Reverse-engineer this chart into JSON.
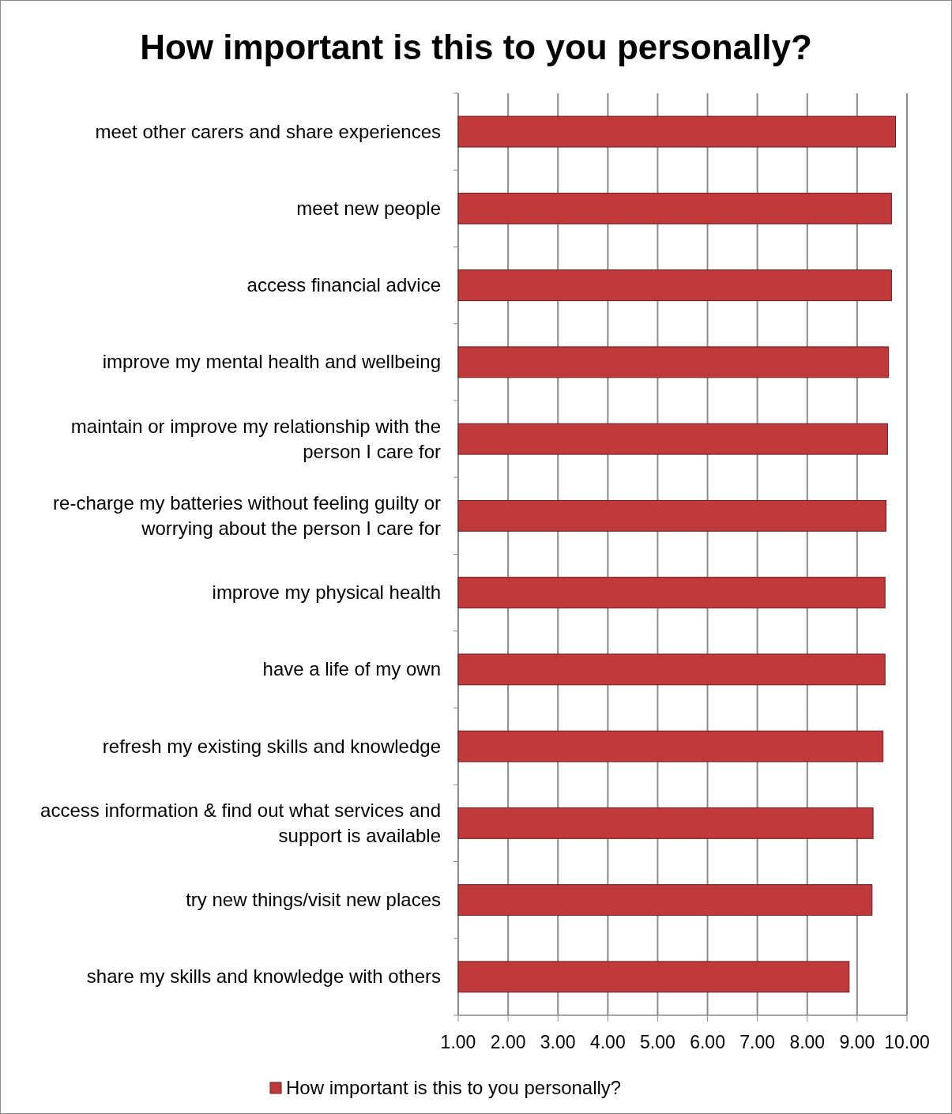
{
  "chart_data": {
    "type": "bar",
    "orientation": "horizontal",
    "title": "How important is this to you personally?",
    "categories": [
      "meet other carers and share experiences",
      "meet new people",
      "access financial advice",
      "improve my mental health and wellbeing",
      "maintain or improve my relationship with the person I care for",
      "re-charge my batteries without feeling guilty or worrying about the person I care for",
      "improve my physical health",
      "have a life of my own",
      "refresh my existing skills and knowledge",
      "access information & find out what services and support is available",
      "try new things/visit new places",
      "share my skills and knowledge with others"
    ],
    "series": [
      {
        "name": "How important is this to you personally?",
        "color": "#c0393b",
        "values": [
          9.77,
          9.69,
          9.69,
          9.63,
          9.61,
          9.58,
          9.56,
          9.56,
          9.52,
          9.32,
          9.3,
          8.84
        ]
      }
    ],
    "xlim": [
      1,
      10
    ],
    "xticks": [
      {
        "value": 1,
        "label": "1.00"
      },
      {
        "value": 2,
        "label": "2.00"
      },
      {
        "value": 3,
        "label": "3.00"
      },
      {
        "value": 4,
        "label": "4.00"
      },
      {
        "value": 5,
        "label": "5.00"
      },
      {
        "value": 6,
        "label": "6.00"
      },
      {
        "value": 7,
        "label": "7.00"
      },
      {
        "value": 8,
        "label": "8.00"
      },
      {
        "value": 9,
        "label": "9.00"
      },
      {
        "value": 10,
        "label": "10.00"
      }
    ],
    "grid": "x",
    "legend": "bottom"
  }
}
